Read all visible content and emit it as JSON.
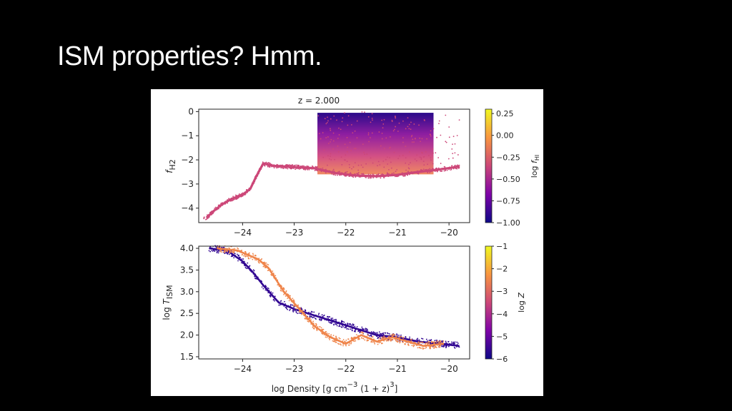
{
  "slide": {
    "title": "ISM properties? Hmm."
  },
  "chart_data": [
    {
      "type": "scatter",
      "title": "z = 2.000",
      "xlabel": "",
      "ylabel": "f_H2",
      "ylabel_parts": {
        "base": "f",
        "sub": "H2"
      },
      "xlim": [
        -24.85,
        -19.6
      ],
      "ylim": [
        -4.6,
        0.1
      ],
      "x_ticks": [
        -24,
        -23,
        -22,
        -21,
        -20
      ],
      "x_tick_labels": [
        "−24",
        "−23",
        "−22",
        "−21",
        "−20"
      ],
      "y_ticks": [
        0,
        -1,
        -2,
        -3,
        -4
      ],
      "y_tick_labels": [
        "0",
        "−1",
        "−2",
        "−3",
        "−4"
      ],
      "color_scale": [
        "#0d0887",
        "#7e03a8",
        "#cc4778",
        "#f89540",
        "#f0f921"
      ],
      "colorbar": {
        "label": "log f_HI",
        "label_parts": {
          "prefix": "log ",
          "base": "f",
          "sub": "HI"
        },
        "range": [
          -1.0,
          0.3
        ],
        "ticks": [
          0.25,
          0.0,
          -0.25,
          -0.5,
          -0.75,
          -1.0
        ],
        "tick_labels": [
          "0.25",
          "0.00",
          "−0.25",
          "−0.50",
          "−0.75",
          "−1.00"
        ]
      },
      "series": [
        {
          "color_value": -0.35,
          "points": [
            [
              -24.7,
              -4.4
            ],
            [
              -24.55,
              -4.1
            ],
            [
              -24.4,
              -3.85
            ],
            [
              -24.2,
              -3.6
            ],
            [
              -24.0,
              -3.45
            ],
            [
              -23.85,
              -3.2
            ],
            [
              -23.75,
              -2.75
            ],
            [
              -23.6,
              -2.15
            ],
            [
              -23.4,
              -2.25
            ],
            [
              -23.0,
              -2.3
            ],
            [
              -22.6,
              -2.35
            ],
            [
              -22.2,
              -2.55
            ],
            [
              -21.8,
              -2.65
            ],
            [
              -21.4,
              -2.68
            ],
            [
              -21.0,
              -2.62
            ],
            [
              -20.6,
              -2.5
            ],
            [
              -20.2,
              -2.4
            ],
            [
              -19.8,
              -2.28
            ]
          ]
        }
      ]
    },
    {
      "type": "scatter",
      "title": "",
      "xlabel": "log Density [g cm⁻³ (1 + z)³]",
      "xlabel_parts": {
        "a": "log Density [g cm",
        "sup1": "−3",
        "b": " (1 + z)",
        "sup2": "3",
        "c": "]"
      },
      "ylabel": "log T_ISM",
      "ylabel_parts": {
        "prefix": "log ",
        "base": "T",
        "sub": "ISM"
      },
      "xlim": [
        -24.85,
        -19.6
      ],
      "ylim": [
        1.45,
        4.05
      ],
      "x_ticks": [
        -24,
        -23,
        -22,
        -21,
        -20
      ],
      "x_tick_labels": [
        "−24",
        "−23",
        "−22",
        "−21",
        "−20"
      ],
      "y_ticks": [
        4.0,
        3.5,
        3.0,
        2.5,
        2.0,
        1.5
      ],
      "y_tick_labels": [
        "4.0",
        "3.5",
        "3.0",
        "2.5",
        "2.0",
        "1.5"
      ],
      "colorbar": {
        "label": "log Z",
        "label_parts": {
          "prefix": "log ",
          "base": "Z"
        },
        "range": [
          -6,
          -1
        ],
        "ticks": [
          -1,
          -2,
          -3,
          -4,
          -5,
          -6
        ],
        "tick_labels": [
          "−1",
          "−2",
          "−3",
          "−4",
          "−5",
          "−6"
        ]
      },
      "series": [
        {
          "color_value": -5.6,
          "points": [
            [
              -24.65,
              4.0
            ],
            [
              -24.3,
              3.95
            ],
            [
              -24.0,
              3.7
            ],
            [
              -23.8,
              3.45
            ],
            [
              -23.6,
              3.15
            ],
            [
              -23.3,
              2.75
            ],
            [
              -23.0,
              2.6
            ],
            [
              -22.6,
              2.45
            ],
            [
              -22.2,
              2.3
            ],
            [
              -21.8,
              2.15
            ],
            [
              -21.4,
              2.0
            ],
            [
              -21.0,
              1.95
            ],
            [
              -20.6,
              1.85
            ],
            [
              -20.2,
              1.8
            ],
            [
              -19.8,
              1.75
            ]
          ]
        },
        {
          "color_value": -2.5,
          "points": [
            [
              -24.5,
              4.0
            ],
            [
              -24.1,
              3.95
            ],
            [
              -23.7,
              3.75
            ],
            [
              -23.5,
              3.55
            ],
            [
              -23.2,
              3.0
            ],
            [
              -22.9,
              2.6
            ],
            [
              -22.6,
              2.2
            ],
            [
              -22.3,
              1.95
            ],
            [
              -22.0,
              1.8
            ],
            [
              -21.7,
              2.0
            ],
            [
              -21.4,
              1.85
            ],
            [
              -21.1,
              1.95
            ],
            [
              -20.8,
              1.85
            ],
            [
              -20.5,
              1.75
            ],
            [
              -20.1,
              1.8
            ]
          ]
        }
      ]
    }
  ]
}
